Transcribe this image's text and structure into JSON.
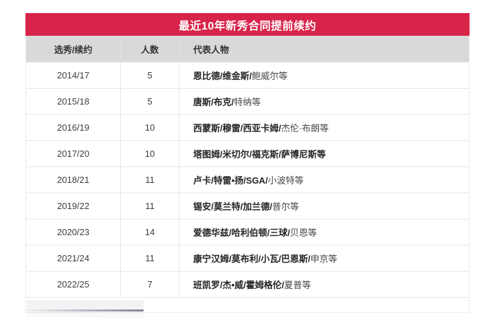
{
  "colors": {
    "accent": "#d8244a",
    "header_bg": "#d9d9d9",
    "border": "#e7e7e7",
    "title_color": "#ffffff",
    "body_text": "#3d3d3d",
    "bold_text": "#242424"
  },
  "chart_data": {
    "type": "table",
    "title": "最近10年新秀合同提前续约",
    "columns": [
      "选秀/续约",
      "人数",
      "代表人物"
    ],
    "categories": [
      "2014/17",
      "2015/18",
      "2016/19",
      "2017/20",
      "2018/21",
      "2019/22",
      "2020/23",
      "2021/24",
      "2022/25"
    ],
    "values": [
      5,
      5,
      10,
      10,
      11,
      11,
      14,
      11,
      7
    ],
    "ylabel": "人数",
    "rows": [
      {
        "period": "2014/17",
        "count": "5",
        "stars": "恩比德/维金斯/",
        "others": "鲍威尔等"
      },
      {
        "period": "2015/18",
        "count": "5",
        "stars": "唐斯/布克/",
        "others": "特纳等"
      },
      {
        "period": "2016/19",
        "count": "10",
        "stars": "西蒙斯/穆雷/西亚卡姆/",
        "others": "杰伦·布朗等"
      },
      {
        "period": "2017/20",
        "count": "10",
        "stars": "塔图姆/米切尔/福克斯/萨博尼斯等",
        "others": ""
      },
      {
        "period": "2018/21",
        "count": "11",
        "stars": "卢卡/特雷•扬/SGA/",
        "others": "小波特等"
      },
      {
        "period": "2019/22",
        "count": "11",
        "stars": "锡安/莫兰特/加兰德/",
        "others": "普尔等"
      },
      {
        "period": "2020/23",
        "count": "14",
        "stars": "爱德华兹/哈利伯顿/三球/",
        "others": "贝恩等"
      },
      {
        "period": "2021/24",
        "count": "11",
        "stars": "康宁汉姆/莫布利/小瓦/巴恩斯/",
        "others": "申京等"
      },
      {
        "period": "2022/25",
        "count": "7",
        "stars": "班凯罗/杰•威/霍姆格伦/",
        "others": "夏普等"
      }
    ]
  }
}
